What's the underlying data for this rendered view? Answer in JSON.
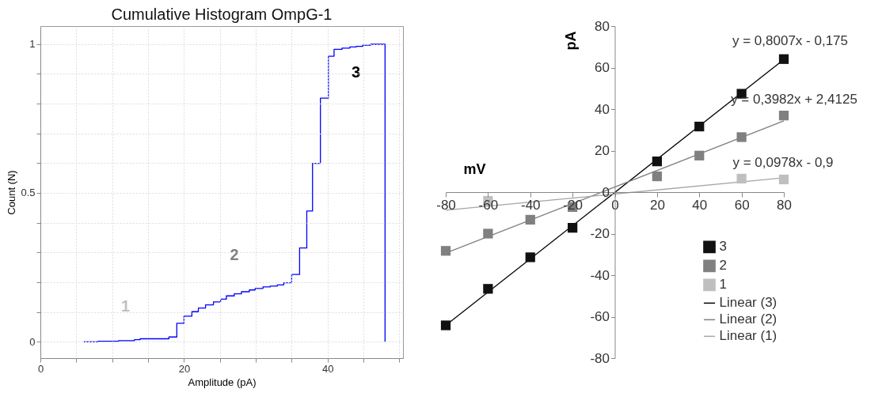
{
  "chart_data": [
    {
      "type": "step",
      "title": "Cumulative Histogram OmpG-1",
      "xlabel": "Amplitude (pA)",
      "ylabel": "Count (N)",
      "xlim": [
        0,
        50.5
      ],
      "ylim": [
        -0.055,
        1.06
      ],
      "xticks": [
        0,
        {
          "value": 5,
          "label": null
        },
        {
          "value": 10,
          "label": null
        },
        {
          "value": 15,
          "label": null
        },
        20,
        {
          "value": 25,
          "label": null
        },
        {
          "value": 30,
          "label": null
        },
        {
          "value": 35,
          "label": null
        },
        40,
        {
          "value": 45,
          "label": null
        },
        {
          "value": 50,
          "label": null
        }
      ],
      "yticks": [
        0,
        {
          "value": 0.1,
          "label": null
        },
        {
          "value": 0.2,
          "label": null
        },
        {
          "value": 0.3,
          "label": null
        },
        {
          "value": 0.4,
          "label": null
        },
        0.5,
        {
          "value": 0.6,
          "label": null
        },
        {
          "value": 0.7,
          "label": null
        },
        {
          "value": 0.8,
          "label": null
        },
        {
          "value": 0.9,
          "label": null
        },
        1
      ],
      "grid": true,
      "legend": false,
      "marker": "none",
      "line_style": "solid",
      "series": [
        {
          "color": "#0000ff",
          "x": [
            6.05,
            8.04,
            10.9,
            13.1,
            13.9,
            17.9,
            19.0,
            20.0,
            21.1,
            22.0,
            23.0,
            24.1,
            25.1,
            25.9,
            27.0,
            28.0,
            29.1,
            29.9,
            31.0,
            32.0,
            33.0,
            33.9,
            35.0,
            36.1,
            37.1,
            37.9,
            39.0,
            40.1,
            40.9,
            42.0,
            43.1,
            44.0,
            44.9,
            46.0,
            48.0
          ],
          "values": [
            0,
            0.002,
            0.004,
            0.007,
            0.01,
            0.016,
            0.062,
            0.086,
            0.101,
            0.113,
            0.124,
            0.134,
            0.143,
            0.154,
            0.161,
            0.168,
            0.174,
            0.179,
            0.184,
            0.187,
            0.191,
            0.198,
            0.226,
            0.315,
            0.439,
            0.599,
            0.818,
            0.959,
            0.982,
            0.986,
            0.99,
            0.992,
            0.996,
            0.999,
            0
          ]
        }
      ],
      "annotations": [
        "1",
        "2",
        "3"
      ]
    },
    {
      "type": "scatter",
      "xlabel": "mV",
      "ylabel": "pA",
      "xlim": [
        -80,
        80
      ],
      "ylim": [
        -80,
        80
      ],
      "xticks": [
        -80,
        -60,
        -40,
        -20,
        0,
        20,
        40,
        60,
        80
      ],
      "yticks": [
        -80,
        -60,
        -40,
        -20,
        0,
        20,
        40,
        60,
        80
      ],
      "grid": false,
      "legend": "bottom right",
      "marker": "square",
      "series": [
        {
          "name": "3",
          "color": "#111111",
          "x": [
            -80,
            -60,
            -40,
            -20,
            20,
            40,
            60,
            80
          ],
          "values": [
            -64.2,
            -46.6,
            -31.4,
            -17.2,
            14.8,
            31.6,
            47.4,
            64.1
          ]
        },
        {
          "name": "2",
          "color": "#808080",
          "x": [
            -80,
            -60,
            -40,
            -20,
            20,
            40,
            60,
            80
          ],
          "values": [
            -28.3,
            -20,
            -13.3,
            -7.2,
            7.6,
            17.6,
            26.5,
            36.9
          ]
        },
        {
          "name": "1",
          "color": "#bfbfbf",
          "x": [
            -60,
            60,
            80
          ],
          "values": [
            -4.2,
            6.5,
            6.1
          ]
        },
        {
          "name": "Linear (3)",
          "type": "line",
          "color": "#000000",
          "x": [
            -80,
            80
          ],
          "values": [
            -64.2,
            63.9
          ],
          "line_style": "solid",
          "marker": "none"
        },
        {
          "name": "Linear (2)",
          "type": "line",
          "color": "#7f7f7f",
          "x": [
            -80,
            80
          ],
          "values": [
            -29.4,
            34.3
          ],
          "line_style": "solid",
          "marker": "none"
        },
        {
          "name": "Linear (1)",
          "type": "line",
          "color": "#a6a6a6",
          "x": [
            -80,
            80
          ],
          "values": [
            -8.7,
            6.9
          ],
          "line_style": "solid",
          "marker": "none"
        }
      ],
      "annotations": [
        "y = 0,8007x - 0,175",
        "y = 0,3982x + 2,4125",
        "y = 0,0978x - 0,9"
      ]
    }
  ]
}
